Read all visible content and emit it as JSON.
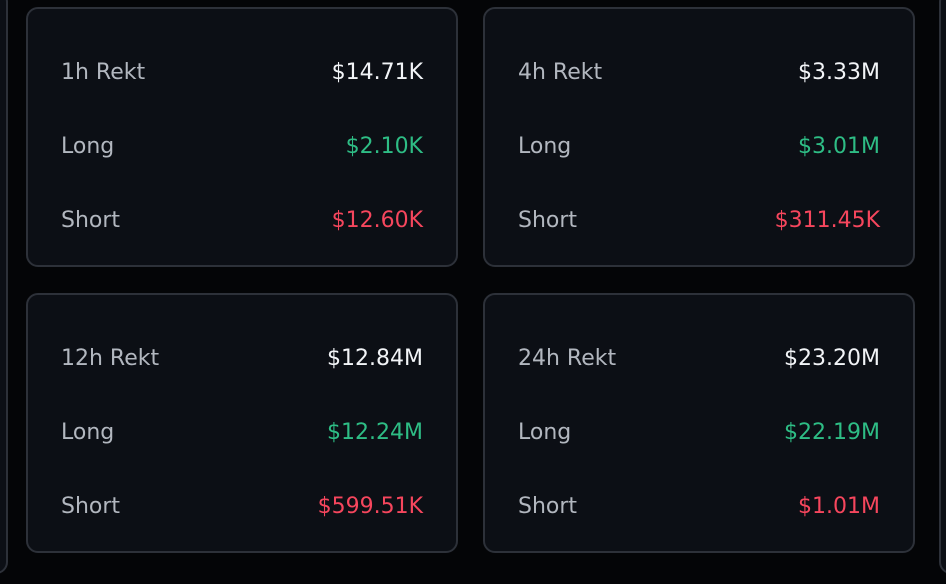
{
  "colors": {
    "long": "#2ebd85",
    "short": "#f6465d",
    "total": "#f2f4f7",
    "label": "#b2b7bf"
  },
  "cards": [
    {
      "title": "1h Rekt",
      "total": "$14.71K",
      "long_label": "Long",
      "long": "$2.10K",
      "short_label": "Short",
      "short": "$12.60K"
    },
    {
      "title": "4h Rekt",
      "total": "$3.33M",
      "long_label": "Long",
      "long": "$3.01M",
      "short_label": "Short",
      "short": "$311.45K"
    },
    {
      "title": "12h Rekt",
      "total": "$12.84M",
      "long_label": "Long",
      "long": "$12.24M",
      "short_label": "Short",
      "short": "$599.51K"
    },
    {
      "title": "24h Rekt",
      "total": "$23.20M",
      "long_label": "Long",
      "long": "$22.19M",
      "short_label": "Short",
      "short": "$1.01M"
    }
  ]
}
